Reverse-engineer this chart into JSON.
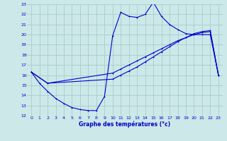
{
  "title": "Graphe des températures (°c)",
  "bg_color": "#cce8e8",
  "grid_color": "#aacccc",
  "line_color": "#0000cc",
  "xlim": [
    -0.5,
    23.5
  ],
  "ylim": [
    12,
    23
  ],
  "xticks": [
    0,
    1,
    2,
    3,
    4,
    5,
    6,
    7,
    8,
    9,
    10,
    11,
    12,
    13,
    14,
    15,
    16,
    17,
    18,
    19,
    20,
    21,
    22,
    23
  ],
  "yticks": [
    12,
    13,
    14,
    15,
    16,
    17,
    18,
    19,
    20,
    21,
    22,
    23
  ],
  "line1_x": [
    0,
    1,
    2,
    3,
    4,
    5,
    6,
    7,
    8,
    9,
    10,
    11,
    12,
    13,
    14,
    15,
    16,
    17,
    18,
    19,
    20,
    21,
    22,
    23
  ],
  "line1_y": [
    16.3,
    15.2,
    14.4,
    13.7,
    13.2,
    12.8,
    12.6,
    12.5,
    12.5,
    13.9,
    19.9,
    22.2,
    21.8,
    21.7,
    22.0,
    23.2,
    21.8,
    21.0,
    20.5,
    20.1,
    20.0,
    20.0,
    20.0,
    16.0
  ],
  "line2_x": [
    0,
    2,
    10,
    11,
    12,
    13,
    14,
    15,
    16,
    17,
    18,
    19,
    20,
    21,
    22,
    23
  ],
  "line2_y": [
    16.3,
    15.2,
    16.2,
    16.6,
    17.0,
    17.4,
    17.8,
    18.2,
    18.6,
    19.0,
    19.4,
    19.7,
    20.0,
    20.2,
    20.3,
    16.0
  ],
  "line3_x": [
    0,
    2,
    10,
    11,
    12,
    13,
    14,
    15,
    16,
    17,
    18,
    19,
    20,
    21,
    22,
    23
  ],
  "line3_y": [
    16.3,
    15.2,
    15.6,
    16.0,
    16.4,
    16.8,
    17.3,
    17.8,
    18.3,
    18.8,
    19.3,
    19.7,
    20.1,
    20.3,
    20.4,
    16.0
  ]
}
